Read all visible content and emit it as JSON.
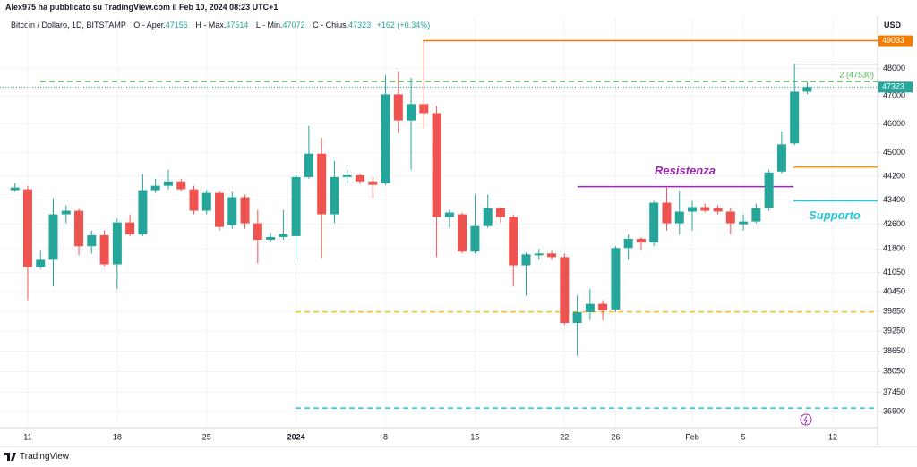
{
  "header": {
    "published": "Alex975 ha pubblicato su TradingView.com il Feb 10, 2024 08:23 UTC+1"
  },
  "footer": {
    "brand": "TradingView"
  },
  "chart_data": {
    "type": "candlestick",
    "title": "Bitcoin / Dollaro, 1D, BITSTAMP",
    "ohlc_labels": [
      "O - Aper.",
      "H - Max.",
      "L - Min.",
      "C - Chius."
    ],
    "change": "+162 (+0.34%)",
    "currency": "USD",
    "categories": [
      null,
      "11",
      null,
      null,
      null,
      null,
      null,
      null,
      "18",
      null,
      null,
      null,
      null,
      null,
      null,
      "25",
      null,
      null,
      null,
      null,
      null,
      null,
      "2024",
      null,
      null,
      null,
      null,
      null,
      null,
      "8",
      null,
      null,
      null,
      null,
      null,
      null,
      "15",
      null,
      null,
      null,
      null,
      null,
      null,
      "22",
      null,
      null,
      null,
      "26",
      null,
      null,
      null,
      null,
      null,
      "Feb",
      null,
      null,
      null,
      "5",
      null,
      null,
      null,
      null,
      null,
      null,
      "12"
    ],
    "open": [
      43726,
      43756,
      41223,
      41454,
      42926,
      43044,
      41889,
      42244,
      41309,
      42659,
      42274,
      43726,
      43874,
      44022,
      43756,
      43044,
      43637,
      42570,
      43489,
      42630,
      42096,
      42185,
      42215,
      44170,
      44969,
      42926,
      44170,
      44231,
      44022,
      43963,
      47062,
      46128,
      46709,
      46386,
      42837,
      42926,
      41714,
      42541,
      43133,
      42837,
      41280,
      41598,
      41656,
      41540,
      39495,
      39823,
      40079,
      39907,
      41830,
      42126,
      42007,
      43311,
      42630,
      43015,
      43163,
      43133,
      43015,
      42600,
      42689,
      43133,
      44354,
      45323,
      47156,
      null,
      null
    ],
    "high": [
      43963,
      43874,
      41742,
      43459,
      43222,
      43104,
      42393,
      42393,
      42778,
      42926,
      44262,
      44111,
      44415,
      44111,
      43874,
      43726,
      43696,
      43667,
      43578,
      43074,
      42333,
      43074,
      44231,
      45935,
      45516,
      44723,
      44415,
      44292,
      44170,
      47750,
      47906,
      47656,
      49033,
      46644,
      43074,
      42985,
      43578,
      43578,
      43163,
      42926,
      41685,
      41800,
      41742,
      41656,
      40336,
      40532,
      40193,
      41889,
      42274,
      42185,
      43370,
      43815,
      43696,
      43370,
      43281,
      43222,
      43133,
      42926,
      43281,
      44415,
      45742,
      48160,
      47514,
      null,
      null
    ],
    "low": [
      43667,
      40193,
      41166,
      40614,
      42630,
      41598,
      41656,
      41251,
      40532,
      42215,
      42215,
      43637,
      43756,
      43696,
      42926,
      42926,
      42393,
      42452,
      42452,
      41338,
      42037,
      42096,
      41454,
      44111,
      41511,
      42630,
      43963,
      43933,
      43459,
      43904,
      45677,
      44415,
      45839,
      41540,
      42481,
      41656,
      41656,
      42481,
      42630,
      40614,
      40336,
      41454,
      41454,
      39440,
      38520,
      39578,
      39578,
      39823,
      41454,
      41742,
      41889,
      42393,
      42274,
      42393,
      42985,
      42926,
      42274,
      42393,
      42630,
      43044,
      44292,
      45258,
      47072,
      null,
      null
    ],
    "close": [
      43815,
      41223,
      41454,
      42926,
      43044,
      41889,
      42244,
      41309,
      42659,
      42274,
      43726,
      43874,
      44022,
      43756,
      43044,
      43637,
      42511,
      43489,
      42630,
      42096,
      42185,
      42274,
      44170,
      44969,
      42926,
      44170,
      44231,
      44022,
      43904,
      47062,
      46128,
      46709,
      46386,
      42837,
      42985,
      41714,
      42541,
      43133,
      42837,
      41280,
      41627,
      41656,
      41540,
      39495,
      39823,
      40079,
      39879,
      41830,
      42126,
      42007,
      43311,
      42630,
      43015,
      43163,
      43044,
      43015,
      42630,
      42689,
      43133,
      44323,
      45290,
      47156,
      47323,
      null,
      null
    ],
    "up_color": "#26a69a",
    "down_color": "#ef5350",
    "ylim": [
      36450,
      49900
    ],
    "log_scale": true,
    "grid": true,
    "yticks": [
      48000,
      47000,
      46000,
      45000,
      44200,
      43400,
      42600,
      41800,
      41050,
      40450,
      39850,
      39250,
      38650,
      38050,
      37450,
      36900
    ],
    "levels": [
      {
        "value": 49033,
        "color": "#f57c00"
      },
      {
        "value": 47530,
        "color": "#4caf50",
        "dashed": true,
        "label": "2 (47530)"
      },
      {
        "value": 44507,
        "color": "#ff9800"
      },
      {
        "value": 43370,
        "color": "#26c6da",
        "label": "Supporto"
      },
      {
        "value": 43845,
        "color": "#9c27b0",
        "label": "Resistenza"
      },
      {
        "value": 39830,
        "color": "#f6c026",
        "dashed": true
      },
      {
        "value": 37000,
        "color": "#26c6da",
        "dashed": true
      }
    ]
  }
}
